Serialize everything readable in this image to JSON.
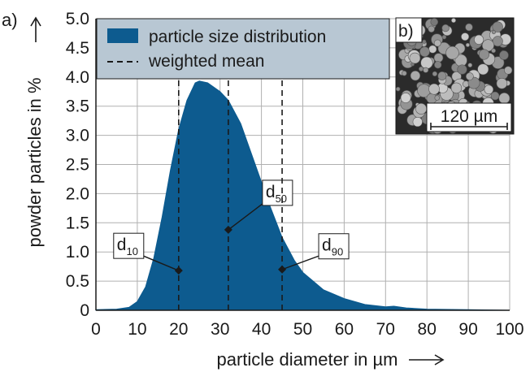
{
  "chart_data": {
    "type": "area",
    "panel_label": "a)",
    "xlabel": "particle diameter in µm",
    "ylabel": "powder particles in %",
    "x": [
      0,
      5,
      8,
      10,
      12,
      14,
      16,
      18,
      20,
      22,
      24,
      25,
      27,
      30,
      32,
      35,
      38,
      40,
      42,
      45,
      48,
      50,
      55,
      60,
      65,
      70,
      72,
      75,
      80,
      90,
      100
    ],
    "series": [
      {
        "name": "particle size distribution",
        "color": "#0d5b8f",
        "values": [
          0.01,
          0.02,
          0.05,
          0.15,
          0.4,
          0.9,
          1.6,
          2.4,
          3.1,
          3.6,
          3.9,
          3.93,
          3.9,
          3.75,
          3.6,
          3.2,
          2.6,
          2.2,
          1.8,
          1.25,
          0.85,
          0.65,
          0.35,
          0.2,
          0.1,
          0.06,
          0.07,
          0.04,
          0.02,
          0.01,
          0
        ]
      }
    ],
    "weighted_mean": {
      "name": "weighted mean",
      "color": "#1a1a1a",
      "points": [
        {
          "text": "d",
          "sub": "10",
          "x": 20,
          "y": 0.68
        },
        {
          "text": "d",
          "sub": "50",
          "x": 32,
          "y": 1.38
        },
        {
          "text": "d",
          "sub": "90",
          "x": 45,
          "y": 0.7
        }
      ]
    },
    "xlim": [
      0,
      100
    ],
    "ylim": [
      0,
      5
    ],
    "xticks": [
      0,
      10,
      20,
      30,
      40,
      50,
      60,
      70,
      80,
      90,
      100
    ],
    "yticks": [
      0,
      0.5,
      {
        "value": 1,
        "label": "1.0"
      },
      1.5,
      {
        "value": 2,
        "label": "2.0"
      },
      2.5,
      {
        "value": 3,
        "label": "3.0"
      },
      3.5,
      {
        "value": 4,
        "label": "4.0"
      },
      4.5,
      {
        "value": 5,
        "label": "5.0"
      }
    ],
    "grid": true,
    "legend": "upper left",
    "inset": {
      "label": "b)",
      "scale_bar": "120 µm"
    }
  }
}
